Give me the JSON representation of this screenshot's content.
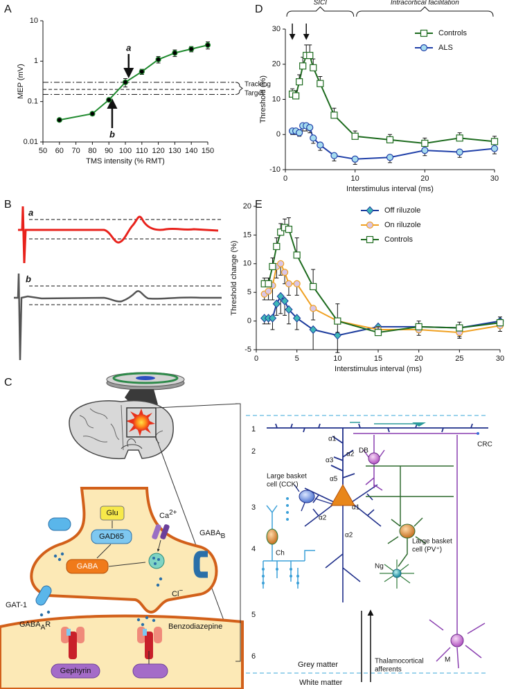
{
  "panel_labels": [
    "A",
    "B",
    "C",
    "D",
    "E"
  ],
  "chart_data": [
    {
      "type": "line",
      "log_y": true,
      "x_label": "TMS intensity (% RMT)",
      "y_label": "MEP (mV)",
      "x": [
        60,
        80,
        90,
        100,
        110,
        120,
        130,
        140,
        150
      ],
      "series": [
        {
          "color": "#1f8a2e",
          "marker": "circle",
          "marker_fill": "#000000",
          "error_direction": "both",
          "values": [
            0.035,
            0.05,
            0.11,
            0.3,
            0.55,
            1.1,
            1.6,
            2.0,
            2.5
          ],
          "errors": [
            0.003,
            0.005,
            0.01,
            0.07,
            0.08,
            0.2,
            0.3,
            0.3,
            0.5
          ]
        }
      ],
      "xlim": [
        50,
        150
      ],
      "xticks": [
        50,
        60,
        70,
        80,
        90,
        100,
        110,
        120,
        130,
        140,
        150
      ],
      "ylim": [
        0.01,
        10
      ],
      "yticks": [
        0.01,
        0.1,
        1,
        10
      ],
      "reference_lines": [
        {
          "value": 0.3,
          "style": "dashdot"
        },
        {
          "value": 0.2,
          "style": "dashed"
        },
        {
          "value": 0.15,
          "style": "dashdot"
        }
      ],
      "annotations": [
        {
          "text": "a",
          "x": 102
        },
        {
          "text": "b",
          "x": 92
        }
      ],
      "bracket_labels": [
        "Tracking",
        "Target"
      ]
    },
    {
      "type": "line",
      "x_label": "Interstimulus interval (ms)",
      "y_label": "Threshold (%)",
      "legend": "upper right",
      "x": [
        1,
        1.5,
        2,
        2.5,
        3,
        3.5,
        4,
        5,
        7,
        10,
        15,
        20,
        25,
        30
      ],
      "series": [
        {
          "name": "Controls",
          "color": "#1d6b1e",
          "marker": "square",
          "marker_fill": "#ffffff",
          "error_direction": "up",
          "values": [
            11.5,
            11,
            15,
            19.5,
            22.5,
            22.5,
            19,
            14.5,
            5.5,
            -0.5,
            -1.5,
            -2.5,
            -1,
            -2
          ],
          "errors": [
            1.5,
            1.5,
            2,
            2.5,
            3,
            3,
            2.5,
            2,
            2,
            1.5,
            1.5,
            1.5,
            1.5,
            1.5
          ]
        },
        {
          "name": "ALS",
          "color": "#1f3fa8",
          "marker": "circle",
          "marker_fill": "#a6dcef",
          "error_direction": "down",
          "values": [
            1,
            1,
            0.5,
            2.5,
            2.5,
            2,
            -1,
            -3,
            -6,
            -7,
            -6.5,
            -4.5,
            -5,
            -4
          ],
          "errors": [
            1,
            1,
            1,
            1.5,
            1.5,
            1.5,
            1.5,
            1.5,
            1.5,
            1.5,
            1.5,
            1.5,
            1.5,
            1.5
          ]
        }
      ],
      "xlim": [
        0,
        30
      ],
      "xticks": [
        0,
        10,
        20,
        30
      ],
      "ylim": [
        -10,
        30
      ],
      "yticks": [
        -10,
        0,
        10,
        20,
        30
      ],
      "brackets": [
        {
          "text": "SICI",
          "from": 0,
          "to": 10
        },
        {
          "text": "Intracortical facilitation",
          "from": 10,
          "to": 30
        }
      ],
      "arrows_x": [
        1,
        3
      ]
    },
    {
      "type": "line",
      "x_label": "Interstimulus interval (ms)",
      "y_label": "Threshold change (%)",
      "legend": "upper center",
      "x": [
        1,
        1.5,
        2,
        2.5,
        3,
        3.5,
        4,
        5,
        7,
        10,
        15,
        20,
        25,
        30
      ],
      "series": [
        {
          "name": "Off riluzole",
          "color": "#1a3a9c",
          "marker": "diamond",
          "marker_fill": "#3fb8b8",
          "error_direction": "down",
          "values": [
            0.5,
            0.5,
            0.5,
            3,
            4.3,
            3.5,
            2,
            0.5,
            -1.5,
            -2.5,
            -1,
            -1,
            -1.2,
            0
          ],
          "errors": [
            1,
            1,
            2,
            2,
            3,
            2.5,
            2.5,
            2,
            3.5,
            3,
            1,
            1,
            1.5,
            1
          ]
        },
        {
          "name": "On riluzole",
          "color": "#f0a020",
          "marker": "circle",
          "marker_fill": "#d9c6e6",
          "error_direction": "down",
          "values": [
            4.7,
            5.2,
            6.2,
            9.5,
            10,
            8.5,
            6.5,
            6.5,
            2.2,
            0,
            -1.5,
            -1.5,
            -2,
            -0.8
          ],
          "errors": [
            1,
            1.5,
            2.5,
            2,
            2,
            2,
            2,
            2,
            2,
            2,
            1,
            1,
            1,
            1
          ]
        },
        {
          "name": "Controls",
          "color": "#1d6b1e",
          "marker": "square",
          "marker_fill": "#ffffff",
          "error_direction": "up",
          "values": [
            6.5,
            6.5,
            9.5,
            13,
            15.5,
            16.3,
            16,
            11.5,
            6,
            0,
            -2,
            -1,
            -1.2,
            -0.3
          ],
          "errors": [
            1,
            1,
            1.5,
            1.5,
            1.5,
            1.5,
            2,
            3,
            3,
            3,
            1,
            1,
            1,
            1
          ]
        }
      ],
      "xlim": [
        0,
        30
      ],
      "xticks": [
        0,
        5,
        10,
        15,
        20,
        25,
        30
      ],
      "ylim": [
        -5,
        20
      ],
      "yticks": [
        -5,
        0,
        5,
        10,
        15,
        20
      ]
    }
  ],
  "panel_b": {
    "traces": [
      "a",
      "b"
    ]
  },
  "panel_c": {
    "synapse": {
      "glu": "Glu",
      "gad": "GAD65",
      "gaba": "GABA",
      "calcium": {
        "text": "Ca",
        "sup": "2+"
      },
      "gaba_b": {
        "text": "GABA",
        "sub": "B"
      },
      "gat": "GAT-1",
      "chloride": {
        "text": "Cl",
        "sup": "−"
      },
      "gaba_a": {
        "text": "GABA",
        "sub": "A",
        "after": "R"
      },
      "benzodiazepine": "Benzodiazepine",
      "gephyrin": "Gephyrin"
    },
    "cortex": {
      "layers": [
        "1",
        "2",
        "3",
        "4",
        "5",
        "6"
      ],
      "cells": {
        "crc": "CRC",
        "db": "DB",
        "cck": [
          "Large basket",
          "cell (CCK)"
        ],
        "ch": "Ch",
        "pv": [
          "Large basket",
          "cell (PV⁺)"
        ],
        "ng": "Ng",
        "m": "M"
      },
      "receptors": [
        "α1",
        "α2",
        "α3",
        "α5",
        "α1",
        "α2",
        "α2"
      ],
      "grey": "Grey matter",
      "white": "White matter",
      "afferents": [
        "Thalamocortical",
        "afferents"
      ]
    }
  }
}
